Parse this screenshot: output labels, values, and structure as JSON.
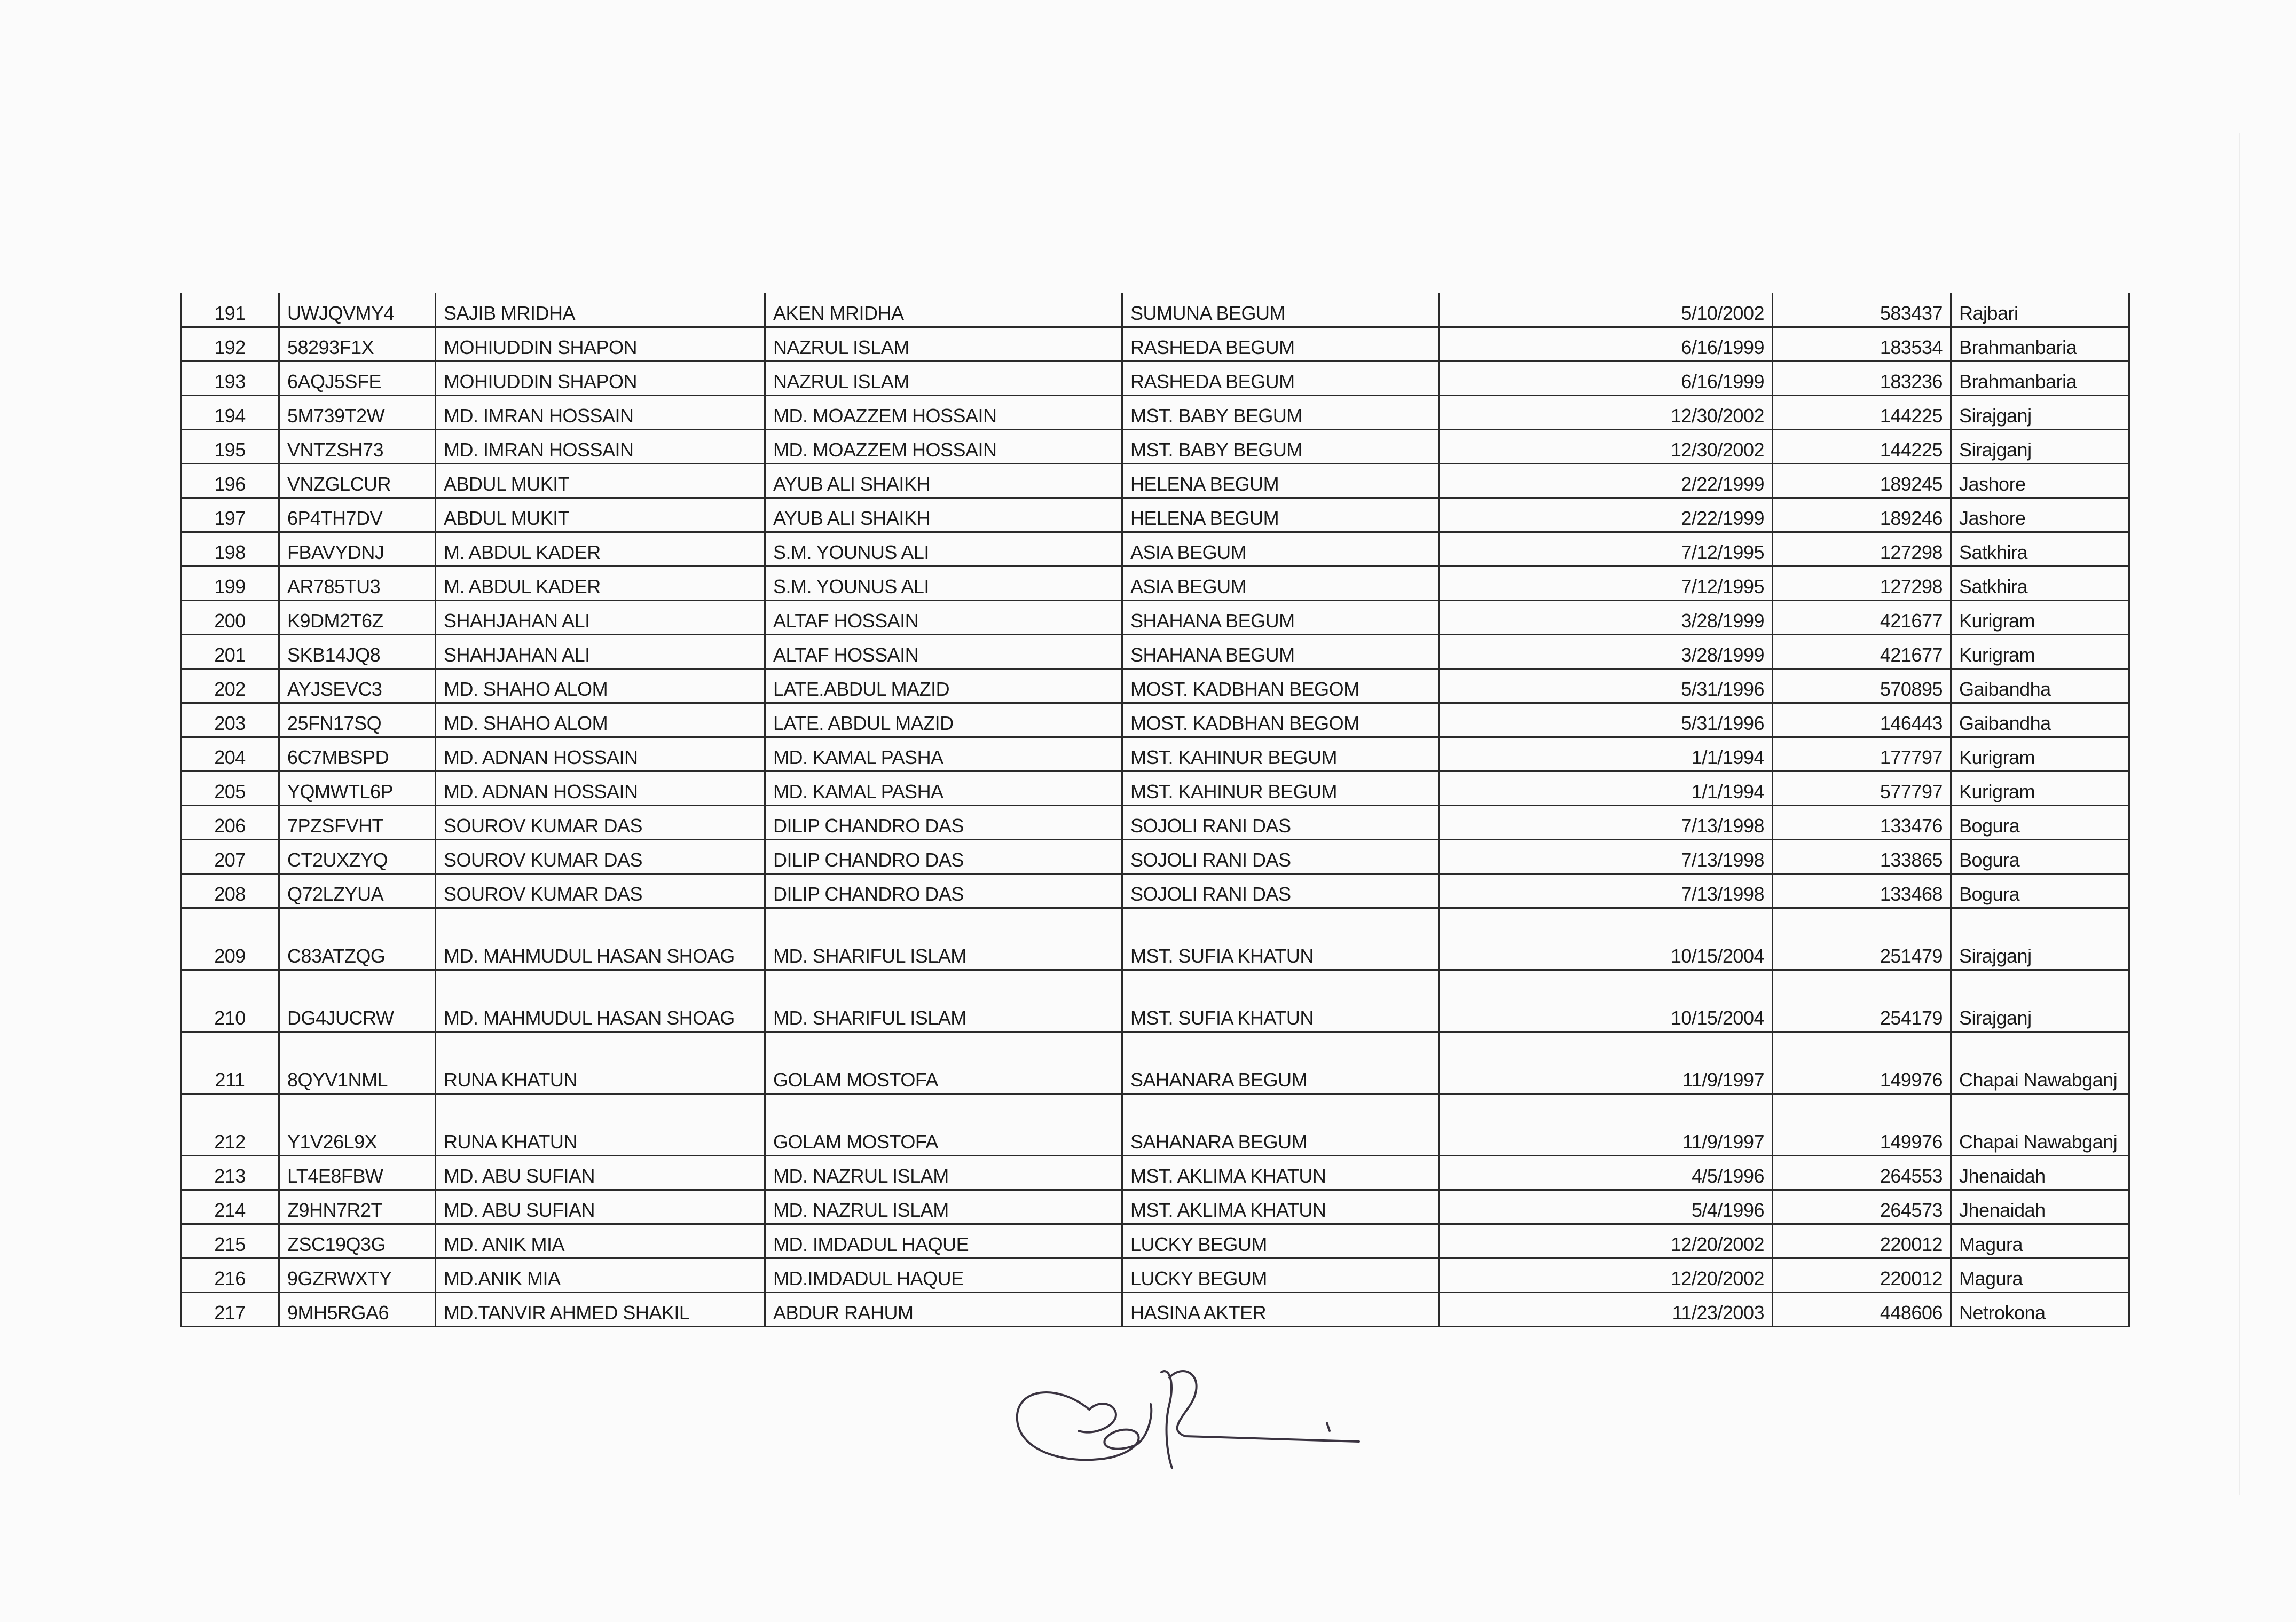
{
  "table": {
    "rows": [
      [
        "191",
        "UWJQVMY4",
        "SAJIB MRIDHA",
        "AKEN MRIDHA",
        "SUMUNA BEGUM",
        "5/10/2002",
        "583437",
        "Rajbari"
      ],
      [
        "192",
        "58293F1X",
        "MOHIUDDIN SHAPON",
        "NAZRUL ISLAM",
        "RASHEDA BEGUM",
        "6/16/1999",
        "183534",
        "Brahmanbaria"
      ],
      [
        "193",
        "6AQJ5SFE",
        "MOHIUDDIN SHAPON",
        "NAZRUL ISLAM",
        "RASHEDA BEGUM",
        "6/16/1999",
        "183236",
        "Brahmanbaria"
      ],
      [
        "194",
        "5M739T2W",
        "MD. IMRAN HOSSAIN",
        "MD. MOAZZEM HOSSAIN",
        "MST. BABY BEGUM",
        "12/30/2002",
        "144225",
        "Sirajganj"
      ],
      [
        "195",
        "VNTZSH73",
        "MD. IMRAN HOSSAIN",
        "MD. MOAZZEM HOSSAIN",
        "MST. BABY BEGUM",
        "12/30/2002",
        "144225",
        "Sirajganj"
      ],
      [
        "196",
        "VNZGLCUR",
        "ABDUL MUKIT",
        "AYUB ALI SHAIKH",
        "HELENA BEGUM",
        "2/22/1999",
        "189245",
        "Jashore"
      ],
      [
        "197",
        "6P4TH7DV",
        "ABDUL MUKIT",
        "AYUB ALI SHAIKH",
        "HELENA BEGUM",
        "2/22/1999",
        "189246",
        "Jashore"
      ],
      [
        "198",
        "FBAVYDNJ",
        "M. ABDUL KADER",
        "S.M. YOUNUS ALI",
        "ASIA BEGUM",
        "7/12/1995",
        "127298",
        "Satkhira"
      ],
      [
        "199",
        "AR785TU3",
        "M. ABDUL KADER",
        "S.M. YOUNUS ALI",
        "ASIA BEGUM",
        "7/12/1995",
        "127298",
        "Satkhira"
      ],
      [
        "200",
        "K9DM2T6Z",
        "SHAHJAHAN ALI",
        "ALTAF HOSSAIN",
        "SHAHANA BEGUM",
        "3/28/1999",
        "421677",
        "Kurigram"
      ],
      [
        "201",
        "SKB14JQ8",
        "SHAHJAHAN ALI",
        "ALTAF HOSSAIN",
        "SHAHANA BEGUM",
        "3/28/1999",
        "421677",
        "Kurigram"
      ],
      [
        "202",
        "AYJSEVC3",
        "MD. SHAHO ALOM",
        "LATE.ABDUL MAZID",
        "MOST. KADBHAN BEGOM",
        "5/31/1996",
        "570895",
        "Gaibandha"
      ],
      [
        "203",
        "25FN17SQ",
        "MD. SHAHO ALOM",
        "LATE. ABDUL MAZID",
        "MOST. KADBHAN BEGOM",
        "5/31/1996",
        "146443",
        "Gaibandha"
      ],
      [
        "204",
        "6C7MBSPD",
        "MD. ADNAN HOSSAIN",
        "MD. KAMAL PASHA",
        "MST. KAHINUR BEGUM",
        "1/1/1994",
        "177797",
        "Kurigram"
      ],
      [
        "205",
        "YQMWTL6P",
        "MD. ADNAN HOSSAIN",
        "MD. KAMAL PASHA",
        "MST. KAHINUR BEGUM",
        "1/1/1994",
        "577797",
        "Kurigram"
      ],
      [
        "206",
        "7PZSFVHT",
        "SOUROV KUMAR DAS",
        "DILIP CHANDRO DAS",
        "SOJOLI RANI DAS",
        "7/13/1998",
        "133476",
        "Bogura"
      ],
      [
        "207",
        "CT2UXZYQ",
        "SOUROV KUMAR DAS",
        "DILIP CHANDRO DAS",
        "SOJOLI RANI DAS",
        "7/13/1998",
        "133865",
        "Bogura"
      ],
      [
        "208",
        "Q72LZYUA",
        "SOUROV KUMAR DAS",
        "DILIP CHANDRO DAS",
        "SOJOLI RANI DAS",
        "7/13/1998",
        "133468",
        "Bogura"
      ],
      [
        "209",
        "C83ATZQG",
        "MD. MAHMUDUL HASAN SHOAG",
        "MD. SHARIFUL ISLAM",
        "MST. SUFIA KHATUN",
        "10/15/2004",
        "251479",
        "Sirajganj"
      ],
      [
        "210",
        "DG4JUCRW",
        "MD. MAHMUDUL HASAN SHOAG",
        "MD. SHARIFUL ISLAM",
        "MST. SUFIA KHATUN",
        "10/15/2004",
        "254179",
        "Sirajganj"
      ],
      [
        "211",
        "8QYV1NML",
        "RUNA KHATUN",
        "GOLAM MOSTOFA",
        "SAHANARA BEGUM",
        "11/9/1997",
        "149976",
        "Chapai Nawabganj"
      ],
      [
        "212",
        "Y1V26L9X",
        "RUNA KHATUN",
        "GOLAM MOSTOFA",
        "SAHANARA BEGUM",
        "11/9/1997",
        "149976",
        "Chapai Nawabganj"
      ],
      [
        "213",
        "LT4E8FBW",
        "MD. ABU SUFIAN",
        "MD. NAZRUL ISLAM",
        "MST. AKLIMA KHATUN",
        "4/5/1996",
        "264553",
        "Jhenaidah"
      ],
      [
        "214",
        "Z9HN7R2T",
        "MD. ABU SUFIAN",
        "MD. NAZRUL ISLAM",
        "MST. AKLIMA KHATUN",
        "5/4/1996",
        "264573",
        "Jhenaidah"
      ],
      [
        "215",
        "ZSC19Q3G",
        "MD. ANIK MIA",
        "MD. IMDADUL HAQUE",
        "LUCKY BEGUM",
        "12/20/2002",
        "220012",
        "Magura"
      ],
      [
        "216",
        "9GZRWXTY",
        "MD.ANIK MIA",
        "MD.IMDADUL HAQUE",
        "LUCKY BEGUM",
        "12/20/2002",
        "220012",
        "Magura"
      ],
      [
        "217",
        "9MH5RGA6",
        "MD.TANVIR  AHMED SHAKIL",
        "ABDUR RAHUM",
        "HASINA AKTER",
        "11/23/2003",
        "448606",
        "Netrokona"
      ]
    ]
  }
}
